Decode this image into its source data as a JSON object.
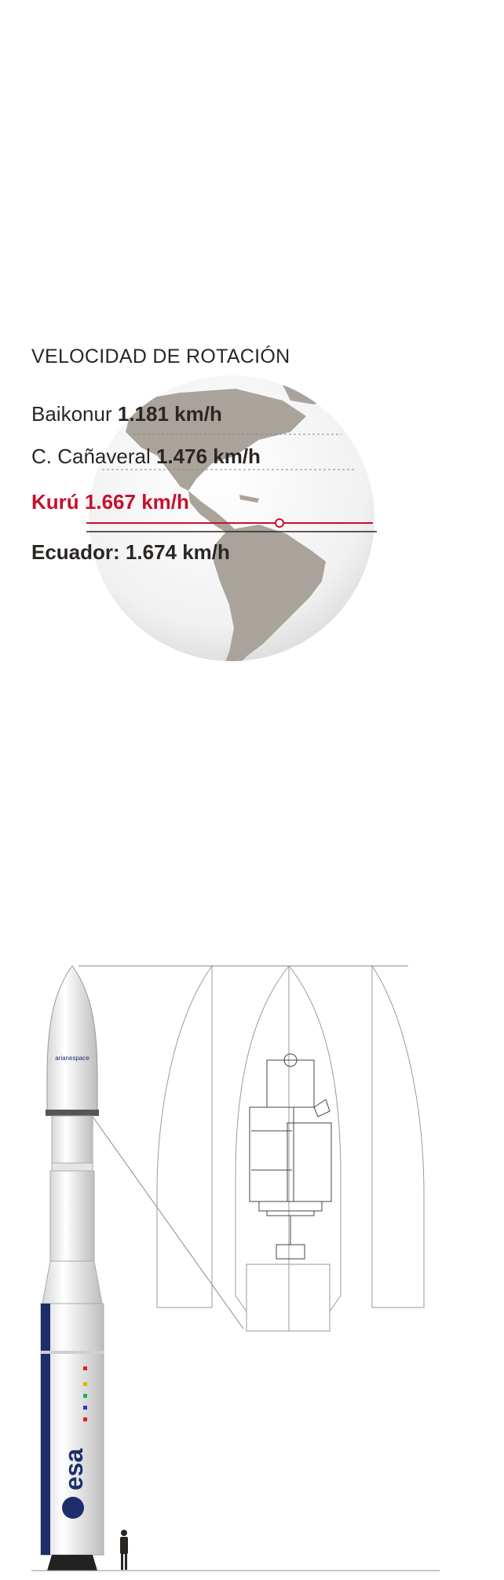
{
  "rotation": {
    "title": "VELOCIDAD DE ROTACIÓN",
    "rows": [
      {
        "place": "Baikonur",
        "speed": "1.181 km/h"
      },
      {
        "place": "C. Cañaveral",
        "speed": "1.476 km/h"
      },
      {
        "place": "Kurú",
        "speed": "1.667 km/h"
      },
      {
        "place": "Ecuador:",
        "speed": "1.674 km/h"
      }
    ],
    "colors": {
      "highlight": "#c8102e",
      "land": "#a9a39c",
      "ocean": "#f1f1f1"
    }
  },
  "rocket": {
    "fairing_logo": "arianespace",
    "body_logo": "esa",
    "colors": {
      "body": "#f4f4f4",
      "stage_band": "#1c2f6b"
    }
  },
  "icons": [
    "globe-icon",
    "rocket-illustration",
    "person-silhouette-icon",
    "satellite-drawing"
  ]
}
